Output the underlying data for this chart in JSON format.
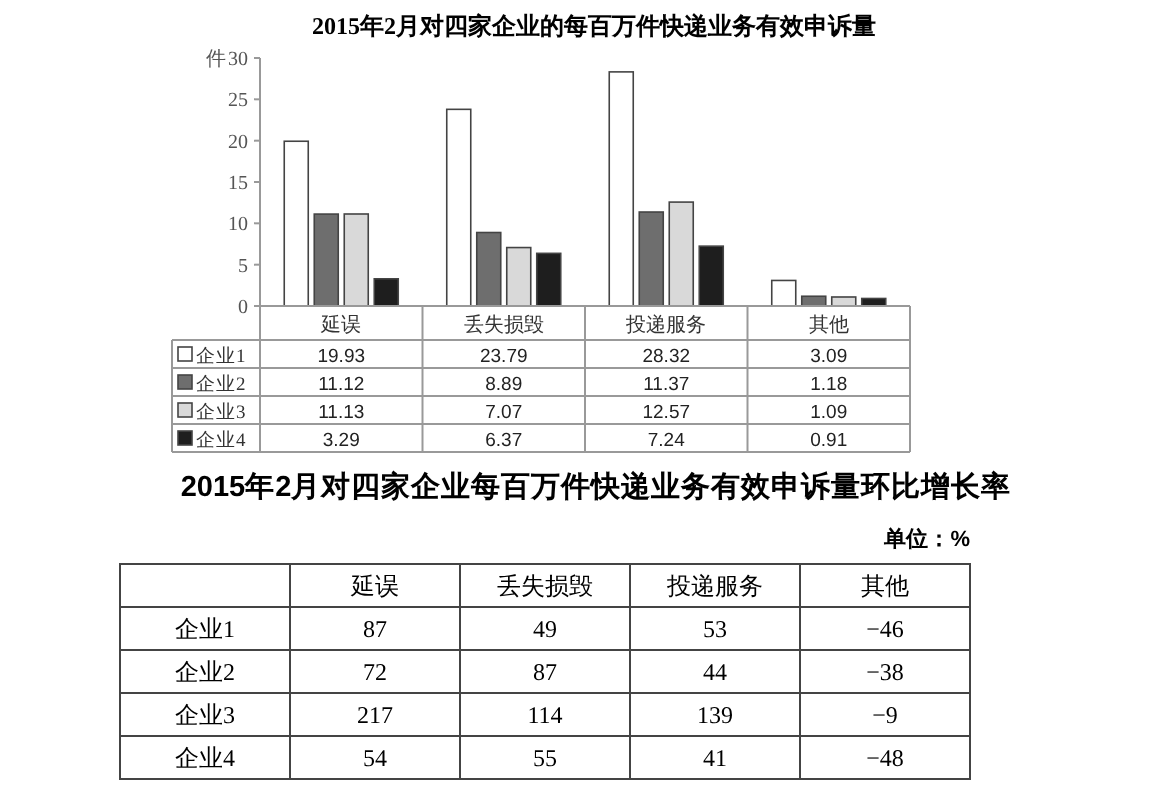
{
  "chart_data": [
    {
      "type": "bar",
      "title": "2015年2月对四家企业的每百万件快递业务有效申诉量",
      "ylabel": "件",
      "categories": [
        "延误",
        "丢失损毁",
        "投递服务",
        "其他"
      ],
      "series": [
        {
          "name": "企业1",
          "color": "#ffffff",
          "values": [
            19.93,
            23.79,
            28.32,
            3.09
          ]
        },
        {
          "name": "企业2",
          "color": "#6e6e6e",
          "values": [
            11.12,
            8.89,
            11.37,
            1.18
          ]
        },
        {
          "name": "企业3",
          "color": "#d9d9d9",
          "values": [
            11.13,
            7.07,
            12.57,
            1.09
          ]
        },
        {
          "name": "企业4",
          "color": "#1e1e1e",
          "values": [
            3.29,
            6.37,
            7.24,
            0.91
          ]
        }
      ],
      "ylim": [
        0,
        30
      ],
      "yticks": [
        0,
        5,
        10,
        15,
        20,
        25,
        30
      ],
      "data_labels": true,
      "legend": "bottom",
      "grid": false
    },
    {
      "type": "other",
      "title": "2015年2月对四家企业每百万件快递业务有效申诉量环比增长率",
      "annotations": [
        "单位：%"
      ],
      "categories": [
        "延误",
        "丢失损毁",
        "投递服务",
        "其他"
      ],
      "series": [
        {
          "name": "企业1",
          "values": [
            87,
            49,
            53,
            -46
          ]
        },
        {
          "name": "企业2",
          "values": [
            72,
            87,
            44,
            -38
          ]
        },
        {
          "name": "企业3",
          "values": [
            217,
            114,
            139,
            -9
          ]
        },
        {
          "name": "企业4",
          "values": [
            54,
            55,
            41,
            -48
          ]
        }
      ],
      "data_labels": true
    }
  ]
}
